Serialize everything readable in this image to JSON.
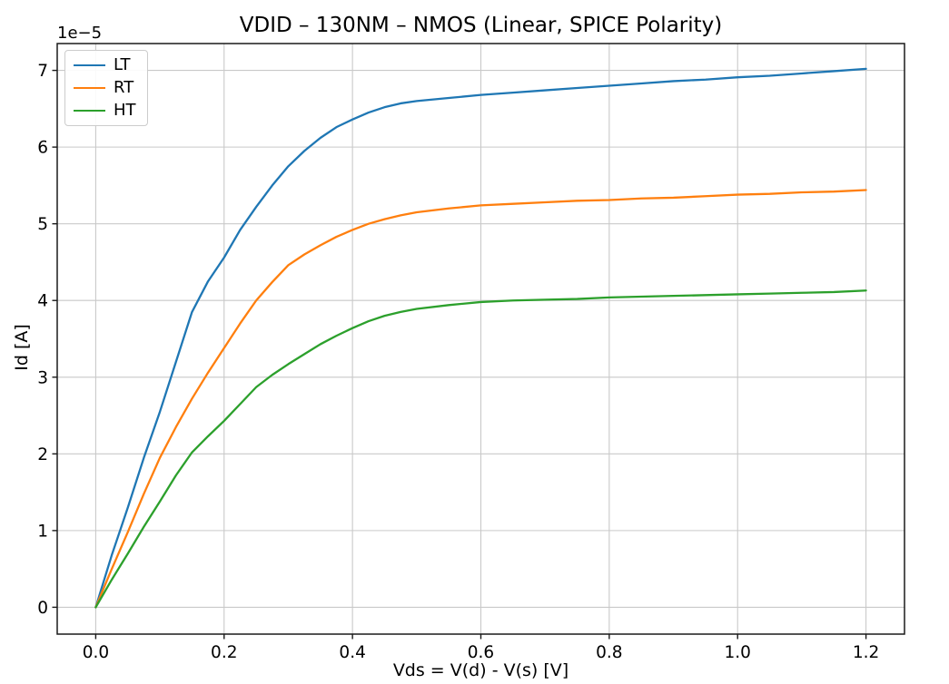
{
  "figure": {
    "background_color": "#ffffff",
    "text_color": "#000000"
  },
  "chart_data": {
    "type": "line",
    "title": "VDID – 130NM – NMOS (Linear, SPICE Polarity)",
    "xlabel": "Vds = V(d) - V(s) [V]",
    "ylabel": "Id [A]",
    "y_offset_text": "1e−5",
    "y_unit_multiplier": 1e-05,
    "xlim": [
      -0.06,
      1.26
    ],
    "ylim": [
      -0.35,
      7.35
    ],
    "x_ticks": [
      0.0,
      0.2,
      0.4,
      0.6,
      0.8,
      1.0,
      1.2
    ],
    "x_tick_labels": [
      "0.0",
      "0.2",
      "0.4",
      "0.6",
      "0.8",
      "1.0",
      "1.2"
    ],
    "y_ticks": [
      0,
      1,
      2,
      3,
      4,
      5,
      6,
      7
    ],
    "y_tick_labels": [
      "0",
      "1",
      "2",
      "3",
      "4",
      "5",
      "6",
      "7"
    ],
    "grid": true,
    "grid_color": "#c9c9c9",
    "spine_color": "#1a1a1a",
    "legend": {
      "position": "upper-left",
      "entries": [
        "LT",
        "RT",
        "HT"
      ]
    },
    "x": [
      0,
      0.025,
      0.05,
      0.075,
      0.1,
      0.125,
      0.15,
      0.175,
      0.2,
      0.225,
      0.25,
      0.275,
      0.3,
      0.325,
      0.35,
      0.375,
      0.4,
      0.425,
      0.45,
      0.475,
      0.5,
      0.55,
      0.6,
      0.65,
      0.7,
      0.75,
      0.8,
      0.85,
      0.9,
      0.95,
      1.0,
      1.05,
      1.1,
      1.15,
      1.2
    ],
    "series": [
      {
        "name": "LT",
        "color": "#1f77b4",
        "values": [
          0,
          0.68,
          1.3,
          1.95,
          2.55,
          3.2,
          3.85,
          4.25,
          4.56,
          4.92,
          5.22,
          5.5,
          5.75,
          5.95,
          6.12,
          6.26,
          6.36,
          6.45,
          6.52,
          6.57,
          6.6,
          6.64,
          6.68,
          6.71,
          6.74,
          6.77,
          6.8,
          6.83,
          6.86,
          6.88,
          6.91,
          6.93,
          6.96,
          6.99,
          7.02
        ]
      },
      {
        "name": "RT",
        "color": "#ff7f0e",
        "values": [
          0,
          0.5,
          0.98,
          1.48,
          1.95,
          2.35,
          2.72,
          3.06,
          3.38,
          3.7,
          4.0,
          4.24,
          4.46,
          4.6,
          4.72,
          4.83,
          4.92,
          5.0,
          5.06,
          5.11,
          5.15,
          5.2,
          5.24,
          5.26,
          5.28,
          5.3,
          5.31,
          5.33,
          5.34,
          5.36,
          5.38,
          5.39,
          5.41,
          5.42,
          5.44
        ]
      },
      {
        "name": "HT",
        "color": "#2ca02c",
        "values": [
          0,
          0.36,
          0.7,
          1.05,
          1.38,
          1.72,
          2.02,
          2.23,
          2.43,
          2.65,
          2.87,
          3.03,
          3.17,
          3.3,
          3.43,
          3.54,
          3.64,
          3.73,
          3.8,
          3.85,
          3.89,
          3.94,
          3.98,
          4.0,
          4.01,
          4.02,
          4.04,
          4.05,
          4.06,
          4.07,
          4.08,
          4.09,
          4.1,
          4.11,
          4.13
        ]
      }
    ]
  }
}
